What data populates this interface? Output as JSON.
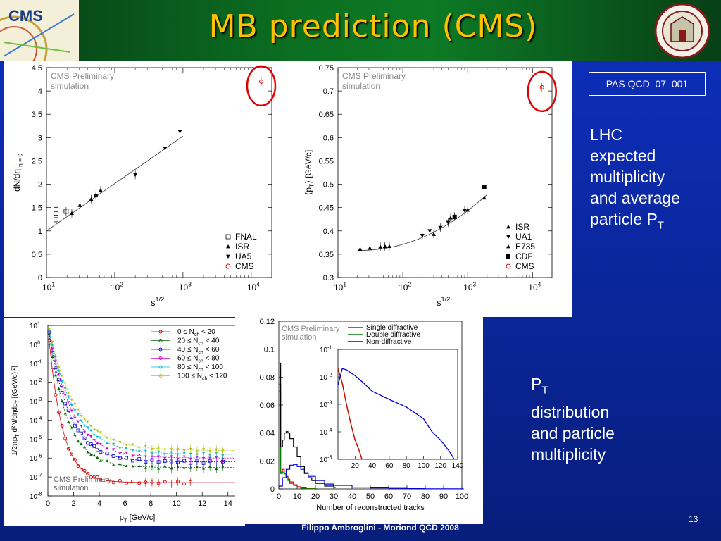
{
  "slide": {
    "title": "MB prediction (CMS)",
    "footer": "Filippo Ambroglini - Moriond QCD 2008",
    "page_number": "13",
    "pas_label": "PAS QCD_07_001",
    "text1_lines": [
      "LHC",
      "expected",
      "multiplicity",
      "and average",
      "particle P"
    ],
    "text1_sub": "T",
    "text2_line1_main": "P",
    "text2_line1_sub": "T",
    "text2_lines": [
      "distribution",
      "and particle",
      "multiplicity"
    ],
    "logo_text": "CMS",
    "colors": {
      "title": "#ffc000",
      "background": "#0a2597",
      "band": "#0b6e21"
    }
  },
  "chart_data": [
    {
      "type": "scatter",
      "title": "",
      "annotation": [
        "CMS Preliminary",
        "simulation"
      ],
      "xlabel": "s",
      "xlabel_sup": "1/2",
      "ylabel": "dN/dη|",
      "ylabel_sub": "η = 0",
      "xscale": "log",
      "xlim": [
        10,
        20000
      ],
      "ylim": [
        0,
        4.5
      ],
      "yticks": [
        "0",
        "0.5",
        "1",
        "1.5",
        "2",
        "2.5",
        "3",
        "3.5",
        "4",
        "4.5"
      ],
      "xticks": [
        "10",
        "10",
        "10",
        "10"
      ],
      "xticks_sup": [
        "1",
        "2",
        "3",
        "4"
      ],
      "legend_position": "bottom-right",
      "series": [
        {
          "name": "FNAL",
          "marker": "open-square",
          "x": [
            13.8,
            13.8,
            13.8,
            19.4
          ],
          "y": [
            1.24,
            1.38,
            1.46,
            1.42
          ]
        },
        {
          "name": "ISR",
          "marker": "triangle-up",
          "x": [
            23.5,
            30.8,
            45.2,
            53,
            62.2
          ],
          "y": [
            1.38,
            1.55,
            1.68,
            1.77,
            1.87
          ]
        },
        {
          "name": "UA5",
          "marker": "triangle-down",
          "x": [
            53,
            200,
            546,
            900
          ],
          "y": [
            1.75,
            2.2,
            2.77,
            3.13
          ]
        },
        {
          "name": "CMS",
          "marker": "open-circle",
          "x": [
            14000
          ],
          "y": [
            4.2
          ]
        }
      ],
      "fit": {
        "x": [
          10,
          1000
        ],
        "y": [
          1.0,
          3.03
        ]
      }
    },
    {
      "type": "scatter",
      "title": "",
      "annotation": [
        "CMS Preliminary",
        "simulation"
      ],
      "xlabel": "s",
      "xlabel_sup": "1/2",
      "ylabel": "⟨p",
      "ylabel_sub": "T",
      "ylabel_tail": "⟩ [GeV/c]",
      "xscale": "log",
      "xlim": [
        10,
        20000
      ],
      "ylim": [
        0.3,
        0.75
      ],
      "yticks": [
        "0.3",
        "0.35",
        "0.4",
        "0.45",
        "0.5",
        "0.55",
        "0.6",
        "0.65",
        "0.7",
        "0.75"
      ],
      "xticks": [
        "10",
        "10",
        "10",
        "10"
      ],
      "xticks_sup": [
        "1",
        "2",
        "3",
        "4"
      ],
      "legend_position": "bottom-right",
      "series": [
        {
          "name": "ISR",
          "marker": "triangle-up",
          "x": [
            22,
            31,
            45,
            53,
            62
          ],
          "y": [
            0.361,
            0.363,
            0.366,
            0.367,
            0.367
          ]
        },
        {
          "name": "UA1",
          "marker": "triangle-down",
          "x": [
            200,
            260,
            380,
            500,
            630,
            900
          ],
          "y": [
            0.39,
            0.4,
            0.407,
            0.418,
            0.431,
            0.444
          ]
        },
        {
          "name": "E735",
          "marker": "triangle-up",
          "x": [
            300,
            546,
            1000,
            1800
          ],
          "y": [
            0.393,
            0.428,
            0.445,
            0.471
          ]
        },
        {
          "name": "CDF",
          "marker": "filled-square",
          "x": [
            630,
            1800
          ],
          "y": [
            0.43,
            0.494
          ]
        },
        {
          "name": "CMS",
          "marker": "open-circle",
          "x": [
            14000
          ],
          "y": [
            0.708
          ]
        }
      ],
      "fit": {
        "x": [
          20,
          2000
        ],
        "y": [
          0.358,
          0.478
        ]
      }
    },
    {
      "type": "scatter",
      "title": "",
      "annotation": [
        "CMS Preliminary",
        "simulation"
      ],
      "xlabel": "p",
      "xlabel_sub": "T",
      "xlabel_tail": " [GeV/c]",
      "ylabel": "1/2πp",
      "ylabel_sub": "T",
      "ylabel_tail": " d²N/dηdp",
      "ylabel_sub2": "T",
      "ylabel_tail2": " [(GeV/c)",
      "ylabel_sup": "-2",
      "ylabel_tail3": "]",
      "yscale": "log",
      "xlim": [
        0,
        15
      ],
      "ylim_exp": [
        -8,
        1
      ],
      "xticks": [
        "0",
        "2",
        "4",
        "6",
        "8",
        "10",
        "12",
        "14"
      ],
      "yticks": [
        "10",
        "10",
        "10",
        "10",
        "10",
        "10",
        "10",
        "10",
        "10",
        "10"
      ],
      "yticks_sup": [
        "-8",
        "-7",
        "-6",
        "-5",
        "-4",
        "-3",
        "-2",
        "-1",
        "0",
        "1"
      ],
      "legend_position": "top-right",
      "series": [
        {
          "name_pre": "0 ≤ N",
          "name_sub": "ch",
          "name_post": " < 20",
          "color": "#d00000",
          "A": 8,
          "B": 0.93,
          "t": 5.4,
          "last_exp": -7.3
        },
        {
          "name_pre": "20 ≤ N",
          "name_sub": "ch",
          "name_post": " < 40",
          "color": "#006400",
          "A": 10,
          "B": 0.7,
          "t": 6.5,
          "last_exp": -6.5
        },
        {
          "name_pre": "40 ≤ N",
          "name_sub": "ch",
          "name_post": " < 60",
          "color": "#0000cc",
          "A": 11,
          "B": 0.62,
          "t": 7.2,
          "last_exp": -6.2
        },
        {
          "name_pre": "60 ≤ N",
          "name_sub": "ch",
          "name_post": " < 80",
          "color": "#cc00cc",
          "A": 12,
          "B": 0.56,
          "t": 7.7,
          "last_exp": -6.0
        },
        {
          "name_pre": "80 ≤ N",
          "name_sub": "ch",
          "name_post": " < 100",
          "color": "#00bcd4",
          "A": 13,
          "B": 0.52,
          "t": 8.1,
          "last_exp": -5.8
        },
        {
          "name_pre": "100 ≤ N",
          "name_sub": "ch",
          "name_post": " < 120",
          "color": "#b5c400",
          "A": 14,
          "B": 0.49,
          "t": 8.4,
          "last_exp": -5.6
        }
      ]
    },
    {
      "type": "line",
      "title": "",
      "annotation": [
        "CMS Preliminary",
        "simulation"
      ],
      "xlabel": "Number of reconstructed tracks",
      "xlim": [
        0,
        100
      ],
      "ylim": [
        0,
        0.12
      ],
      "xticks": [
        "0",
        "10",
        "20",
        "30",
        "40",
        "50",
        "60",
        "70",
        "80",
        "90",
        "100"
      ],
      "yticks": [
        "0",
        "0.02",
        "0.04",
        "0.06",
        "0.08",
        "0.1",
        "0.12"
      ],
      "legend_position": "top-center",
      "series": [
        {
          "name": "Single diffractive",
          "color": "#e00000",
          "x": [
            0,
            1,
            2,
            3,
            4,
            5,
            6,
            8,
            10,
            12,
            15,
            20
          ],
          "y": [
            0.075,
            0.012,
            0.014,
            0.011,
            0.009,
            0.007,
            0.005,
            0.003,
            0.0015,
            0.0007,
            0.0002,
            0.0
          ]
        },
        {
          "name": "Double diffractive",
          "color": "#008000",
          "x": [
            0,
            1,
            2,
            3,
            4,
            5,
            6,
            8,
            10,
            12,
            15,
            20
          ],
          "y": [
            0.07,
            0.011,
            0.012,
            0.01,
            0.008,
            0.006,
            0.004,
            0.0025,
            0.0012,
            0.0005,
            0.0001,
            0.0
          ]
        },
        {
          "name": "Non-diffractive",
          "color": "#0000dd",
          "x": [
            0,
            2,
            4,
            6,
            8,
            10,
            12,
            14,
            16,
            20,
            25,
            30,
            40,
            50,
            60,
            70,
            80,
            90,
            100
          ],
          "y": [
            0.002,
            0.008,
            0.014,
            0.017,
            0.0175,
            0.016,
            0.014,
            0.0115,
            0.009,
            0.006,
            0.0035,
            0.0025,
            0.0012,
            0.0007,
            0.0004,
            0.0002,
            0.0001,
            5e-05,
            2e-05
          ]
        },
        {
          "name": "",
          "color": "#000000",
          "x": [
            0,
            1,
            2,
            3,
            4,
            5,
            6,
            8,
            10,
            12,
            14,
            16,
            18,
            20,
            25,
            30
          ],
          "y": [
            0.09,
            0.03,
            0.035,
            0.04,
            0.041,
            0.04,
            0.036,
            0.03,
            0.023,
            0.016,
            0.011,
            0.008,
            0.006,
            0.004,
            0.002,
            0.001
          ]
        }
      ],
      "inset": {
        "yscale": "log",
        "xlim": [
          0,
          140
        ],
        "ylim_exp": [
          -5,
          -1
        ],
        "xticks": [
          "20",
          "40",
          "60",
          "80",
          "100",
          "120",
          "140"
        ],
        "yticks": [
          "10",
          "10",
          "10",
          "10",
          "10"
        ],
        "yticks_sup": [
          "-5",
          "-4",
          "-3",
          "-2",
          "-1"
        ],
        "nd": {
          "x": [
            0,
            5,
            10,
            20,
            30,
            40,
            60,
            80,
            100,
            110,
            120,
            130,
            136
          ],
          "y": [
            0.005,
            0.02,
            0.018,
            0.011,
            0.006,
            0.003,
            0.0015,
            0.0008,
            0.0003,
            0.0001,
            5e-05,
            2e-05,
            1e-05
          ]
        },
        "diff": {
          "x": [
            0,
            5,
            10,
            15,
            20,
            25,
            28
          ],
          "y": [
            0.02,
            0.006,
            0.001,
            0.0002,
            5e-05,
            2e-05,
            1e-05
          ]
        }
      }
    }
  ]
}
